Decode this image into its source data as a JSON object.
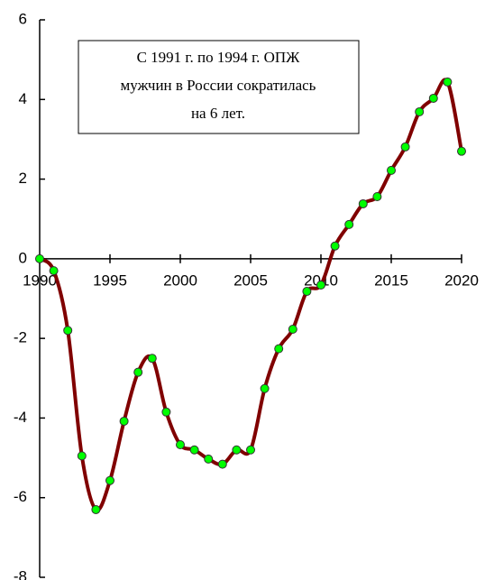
{
  "chart_data": {
    "type": "line",
    "annotation": [
      "С 1991 г.  по 1994 г. ОПЖ",
      "мужчин в России сократилась",
      "на 6 лет."
    ],
    "x": [
      1990,
      1991,
      1992,
      1993,
      1994,
      1995,
      1996,
      1997,
      1998,
      1999,
      2000,
      2001,
      2002,
      2003,
      2004,
      2005,
      2006,
      2007,
      2008,
      2009,
      2010,
      2011,
      2012,
      2013,
      2014,
      2015,
      2016,
      2017,
      2018,
      2019,
      2020
    ],
    "series": [
      {
        "name": null,
        "color": "#800000",
        "marker_color": "#00ff00",
        "values": [
          0,
          -0.3,
          -1.8,
          -4.95,
          -6.3,
          -5.57,
          -4.08,
          -2.85,
          -2.5,
          -3.85,
          -4.67,
          -4.8,
          -5.03,
          -5.16,
          -4.8,
          -4.8,
          -3.26,
          -2.26,
          -1.77,
          -0.82,
          -0.66,
          0.32,
          0.86,
          1.38,
          1.56,
          2.22,
          2.81,
          3.69,
          4.03,
          4.44,
          2.7
        ]
      }
    ],
    "xlim": [
      1990,
      2020
    ],
    "xticks": [
      1990,
      1995,
      2000,
      2005,
      2010,
      2015,
      2020
    ],
    "ylim": [
      -8,
      6
    ],
    "yticks": [
      -8,
      -6,
      -4,
      -2,
      0,
      2,
      4,
      6
    ]
  }
}
